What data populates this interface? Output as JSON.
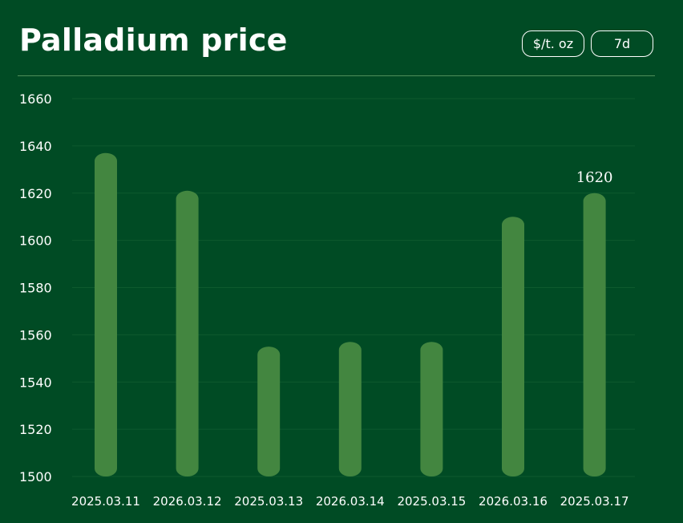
{
  "header": {
    "title": "Palladium price",
    "unit_button": "$/t. oz",
    "range_button": "7d"
  },
  "colors": {
    "background": "#004b24",
    "bar": "#438640",
    "grid": "#0e5a2e",
    "text": "#ffffff"
  },
  "chart_data": {
    "type": "bar",
    "title": "Palladium price",
    "categories": [
      "2025.03.11",
      "2026.03.12",
      "2025.03.13",
      "2026.03.14",
      "2025.03.15",
      "2026.03.16",
      "2025.03.17"
    ],
    "values": [
      1637,
      1621,
      1555,
      1557,
      1557,
      1610,
      1620
    ],
    "ylim": [
      1500,
      1660
    ],
    "yticks": [
      1500,
      1520,
      1540,
      1560,
      1580,
      1600,
      1620,
      1640,
      1660
    ],
    "grid": true,
    "annotations": [
      {
        "category_index": 6,
        "text": "1620"
      }
    ]
  }
}
